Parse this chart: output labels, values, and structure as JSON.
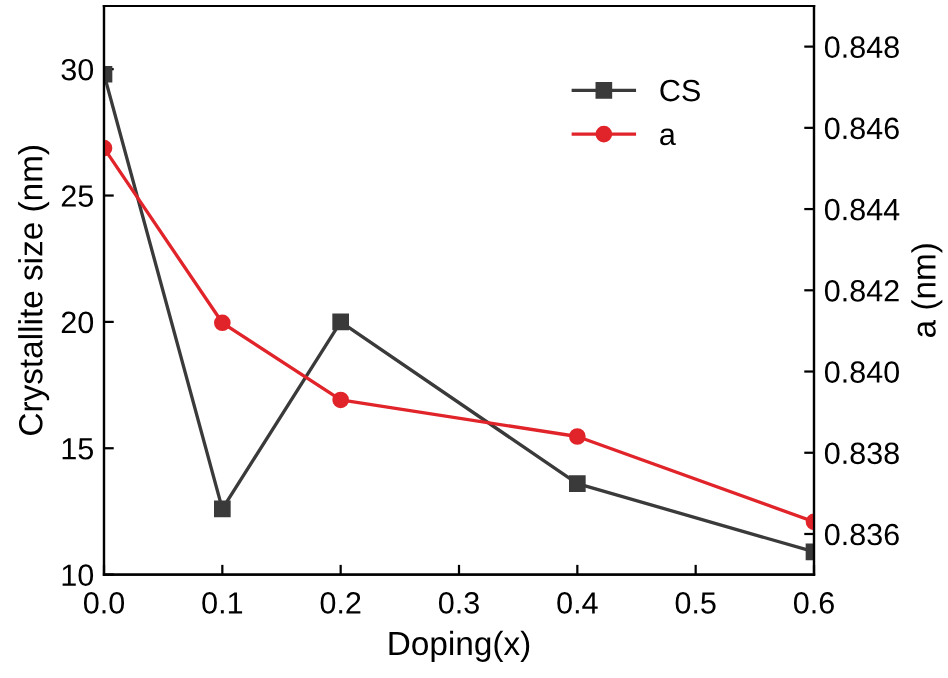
{
  "chart_data": {
    "type": "line",
    "xlabel": "Doping(x)",
    "ylabel": "Crystallite size (nm)",
    "y2label": "a (nm)",
    "x": [
      0.0,
      0.1,
      0.2,
      0.4,
      0.6
    ],
    "series": [
      {
        "name": "CS",
        "color": "#3a3a3a",
        "marker": "square",
        "values": [
          29.8,
          12.6,
          20.0,
          13.6,
          10.9
        ]
      },
      {
        "name": "a",
        "color": "#e0242a",
        "marker": "circle",
        "axis": "y2",
        "values": [
          0.8455,
          0.8412,
          0.8393,
          0.8384,
          0.8363
        ]
      }
    ],
    "xlim": [
      0.0,
      0.6
    ],
    "xticks": [
      {
        "value": 0.0,
        "label": "0.0"
      },
      0.1,
      0.2,
      0.3,
      0.4,
      0.5,
      0.6
    ],
    "ylim": [
      10,
      32.5
    ],
    "yticks": [
      10,
      15,
      20,
      25,
      30
    ],
    "y2lim": [
      0.835,
      0.849
    ],
    "y2ticks": [
      {
        "value": 0.836,
        "label": "0.836"
      },
      {
        "value": 0.838,
        "label": "0.838"
      },
      {
        "value": 0.84,
        "label": "0.840"
      },
      {
        "value": 0.842,
        "label": "0.842"
      },
      {
        "value": 0.844,
        "label": "0.844"
      },
      {
        "value": 0.846,
        "label": "0.846"
      },
      {
        "value": 0.848,
        "label": "0.848"
      }
    ],
    "grid": false,
    "legend": "top right",
    "line_style": "solid"
  }
}
